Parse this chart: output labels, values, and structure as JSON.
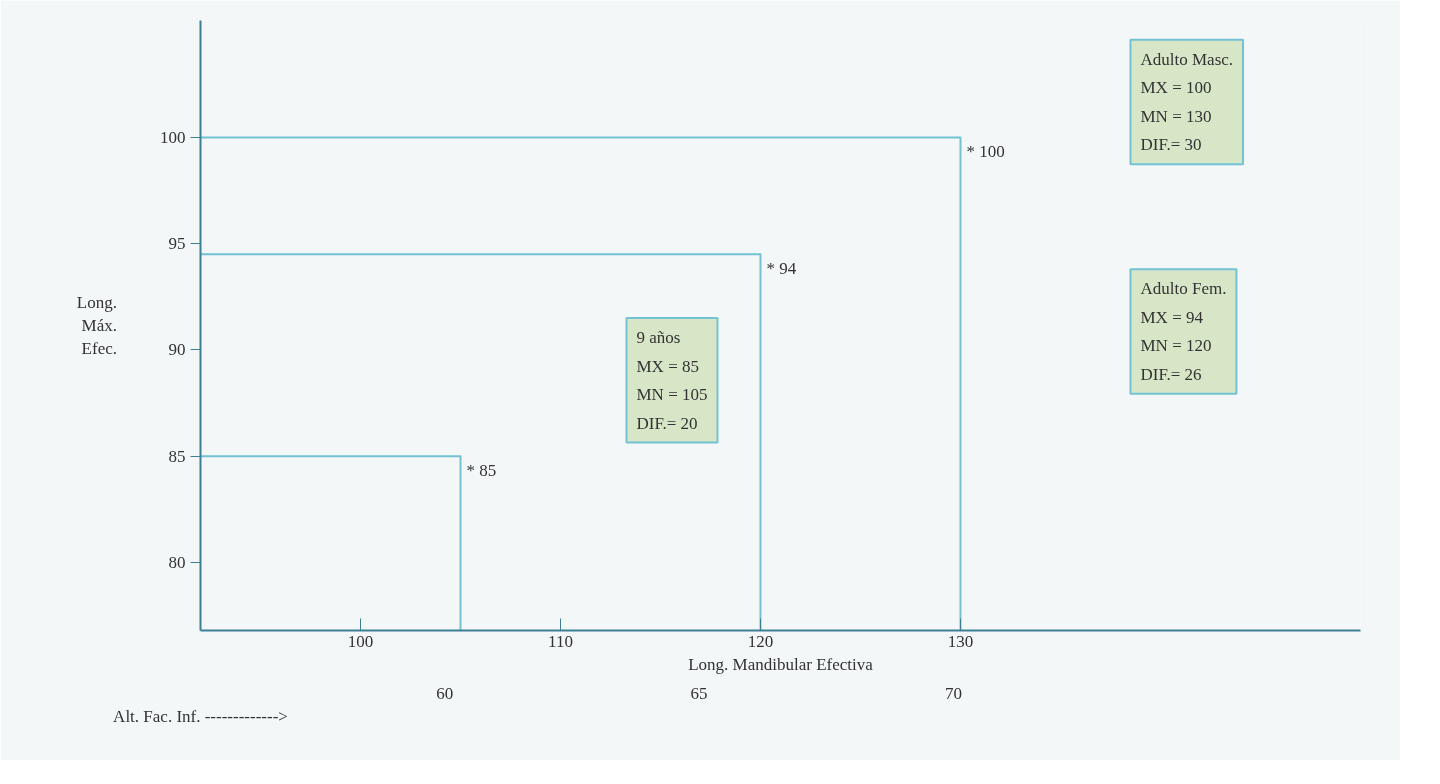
{
  "chart_data": {
    "type": "line",
    "xlabel": "Long. Mandibular Efectiva",
    "ylabel": "Long. Máx. Efec.",
    "x2label": "Alt. Fac. Inf. ------------->",
    "xlim": [
      92,
      150
    ],
    "xticks": [
      100,
      110,
      120,
      130
    ],
    "ylim": [
      76.8,
      105.5
    ],
    "yticks": [
      80,
      85,
      90,
      95,
      100
    ],
    "x2lim": [
      55.2,
      78.0
    ],
    "x2ticks": [
      60,
      65,
      70
    ],
    "series": [
      {
        "color": "#72c2d4",
        "x": [
          92,
          105,
          105
        ],
        "values": [
          85,
          85,
          76.8
        ],
        "value_labels": [
          null,
          "* 85",
          null
        ]
      },
      {
        "color": "#72c2d4",
        "x": [
          92,
          120,
          120
        ],
        "values": [
          94.5,
          94.5,
          76.8
        ],
        "value_labels": [
          null,
          "* 94",
          null
        ]
      },
      {
        "color": "#72c2d4",
        "x": [
          92,
          130,
          130
        ],
        "values": [
          100,
          100,
          76.8
        ],
        "value_labels": [
          null,
          "* 100",
          null
        ]
      }
    ],
    "marker": "none",
    "grid": false,
    "annotations": [
      "9 años\nMX =   85\nMN = 105\nDIF.= 20",
      "Adulto Masc.\nMX = 100\nMN = 130\nDIF.= 30",
      "Adulto Fem.\nMX =   94\nMN = 120\nDIF.=   26"
    ]
  }
}
